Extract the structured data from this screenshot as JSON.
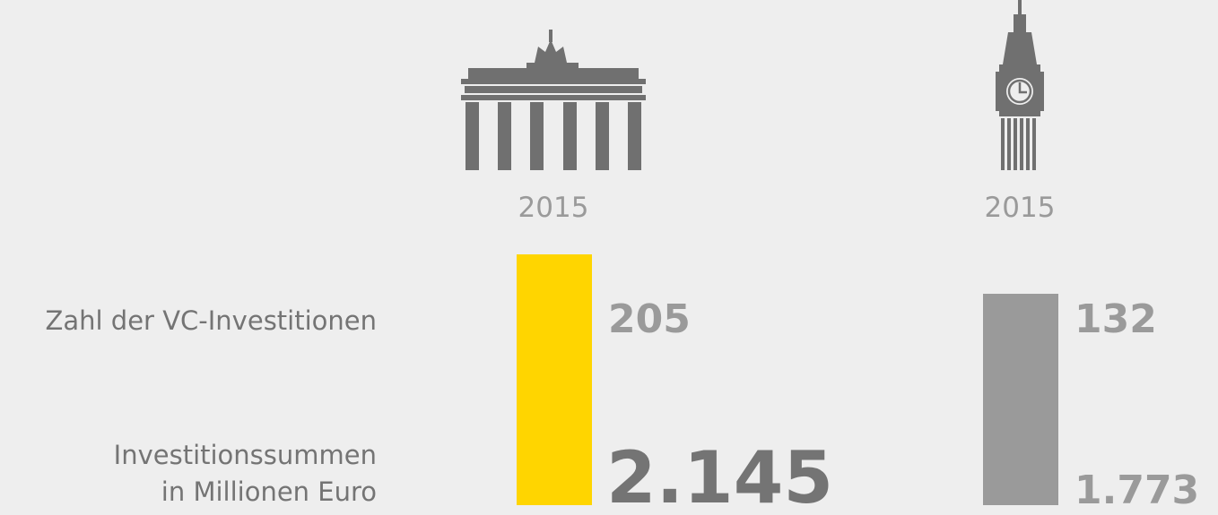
{
  "row_labels": {
    "count": "Zahl der VC-Investitionen",
    "sum": [
      "Investitionssummen",
      "in Millionen Euro"
    ]
  },
  "columns": [
    {
      "year": "2015",
      "count": "205",
      "sum": "2.145"
    },
    {
      "year": "2015",
      "count": "132",
      "sum": "1.773"
    }
  ]
}
